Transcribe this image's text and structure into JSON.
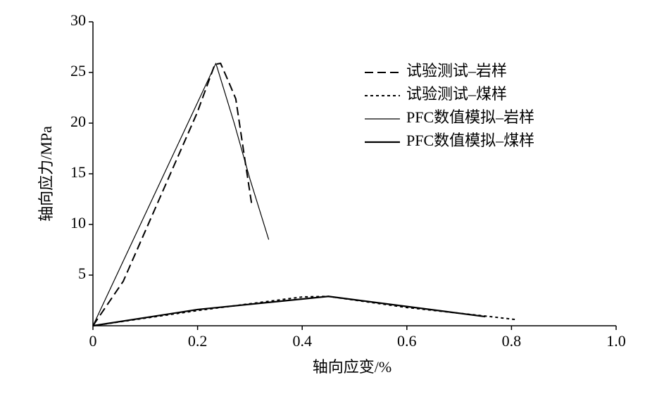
{
  "chart_data": {
    "type": "line",
    "x_label": "轴向应变/%",
    "y_label": "轴向应力/MPa",
    "xlim": [
      0,
      1
    ],
    "ylim": [
      0,
      30
    ],
    "xticks": [
      0,
      0.2,
      0.4,
      0.6,
      0.8,
      {
        "value": 1,
        "label": "1.0"
      }
    ],
    "yticks": [
      5,
      10,
      15,
      20,
      25,
      30
    ],
    "grid": false,
    "legend": "upper-right",
    "series": [
      {
        "name": "试验测试–岩样",
        "color": "#000000",
        "linestyle": "dashed",
        "width": 2,
        "x": [
          0,
          0.058,
          0.199,
          0.233,
          0.244,
          0.26,
          0.273,
          0.291,
          0.304
        ],
        "values": [
          0,
          4.4,
          21,
          25.8,
          25.9,
          24,
          22.4,
          16.2,
          11.8
        ]
      },
      {
        "name": "试验测试–煤样",
        "color": "#000000",
        "linestyle": "dotted",
        "width": 2,
        "x": [
          0,
          0.2,
          0.401,
          0.45,
          0.6,
          0.76,
          0.81
        ],
        "values": [
          0,
          1.5,
          2.85,
          2.9,
          1.8,
          0.9,
          0.6
        ]
      },
      {
        "name": "PFC数值模拟–岩样",
        "color": "#000000",
        "linestyle": "solid",
        "width": 1.2,
        "x": [
          0,
          0.235,
          0.27,
          0.3,
          0.336
        ],
        "values": [
          0,
          25.9,
          20,
          14.5,
          8.5
        ]
      },
      {
        "name": "PFC数值模拟–煤样",
        "color": "#000000",
        "linestyle": "solid",
        "width": 2.2,
        "x": [
          0,
          0.2,
          0.45,
          0.6,
          0.75
        ],
        "values": [
          0,
          1.6,
          2.9,
          1.9,
          0.9
        ]
      }
    ]
  }
}
